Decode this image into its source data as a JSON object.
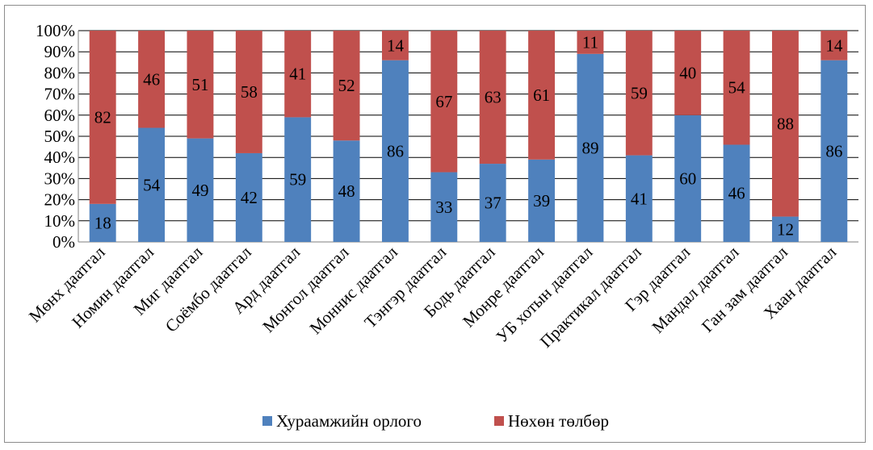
{
  "colors": {
    "series1": "#4f81bd",
    "series2": "#c0504d",
    "grid": "#000000",
    "axis": "#7f7f7f"
  },
  "chart_data": {
    "type": "bar",
    "stacked": "percent",
    "grid": true,
    "legend_position": "bottom",
    "ylim": [
      0,
      100
    ],
    "y_ticks": [
      "0%",
      "10%",
      "20%",
      "30%",
      "40%",
      "50%",
      "60%",
      "70%",
      "80%",
      "90%",
      "100%"
    ],
    "categories": [
      "Мөнх даатгал",
      "Номин даатгал",
      "Миг даатгал",
      "Соёмбо даатгал",
      "Ард даатгал",
      "Монгол даатгал",
      "Моннис даатгал",
      "Тэнгэр даатгал",
      "Бодь даатгал",
      "Монре даатгал",
      "УБ хотын даатгал",
      "Практикал даатгал",
      "Гэр даатгал",
      "Мандал даатгал",
      "Ган зам даатгал",
      "Хаан даатгал"
    ],
    "series": [
      {
        "name": "Хураамжийн орлого",
        "values": [
          18,
          54,
          49,
          42,
          59,
          48,
          86,
          33,
          37,
          39,
          89,
          41,
          60,
          46,
          12,
          86
        ]
      },
      {
        "name": "Нөхөн төлбөр",
        "values": [
          82,
          46,
          51,
          58,
          41,
          52,
          14,
          67,
          63,
          61,
          11,
          59,
          40,
          54,
          88,
          14
        ]
      }
    ]
  }
}
